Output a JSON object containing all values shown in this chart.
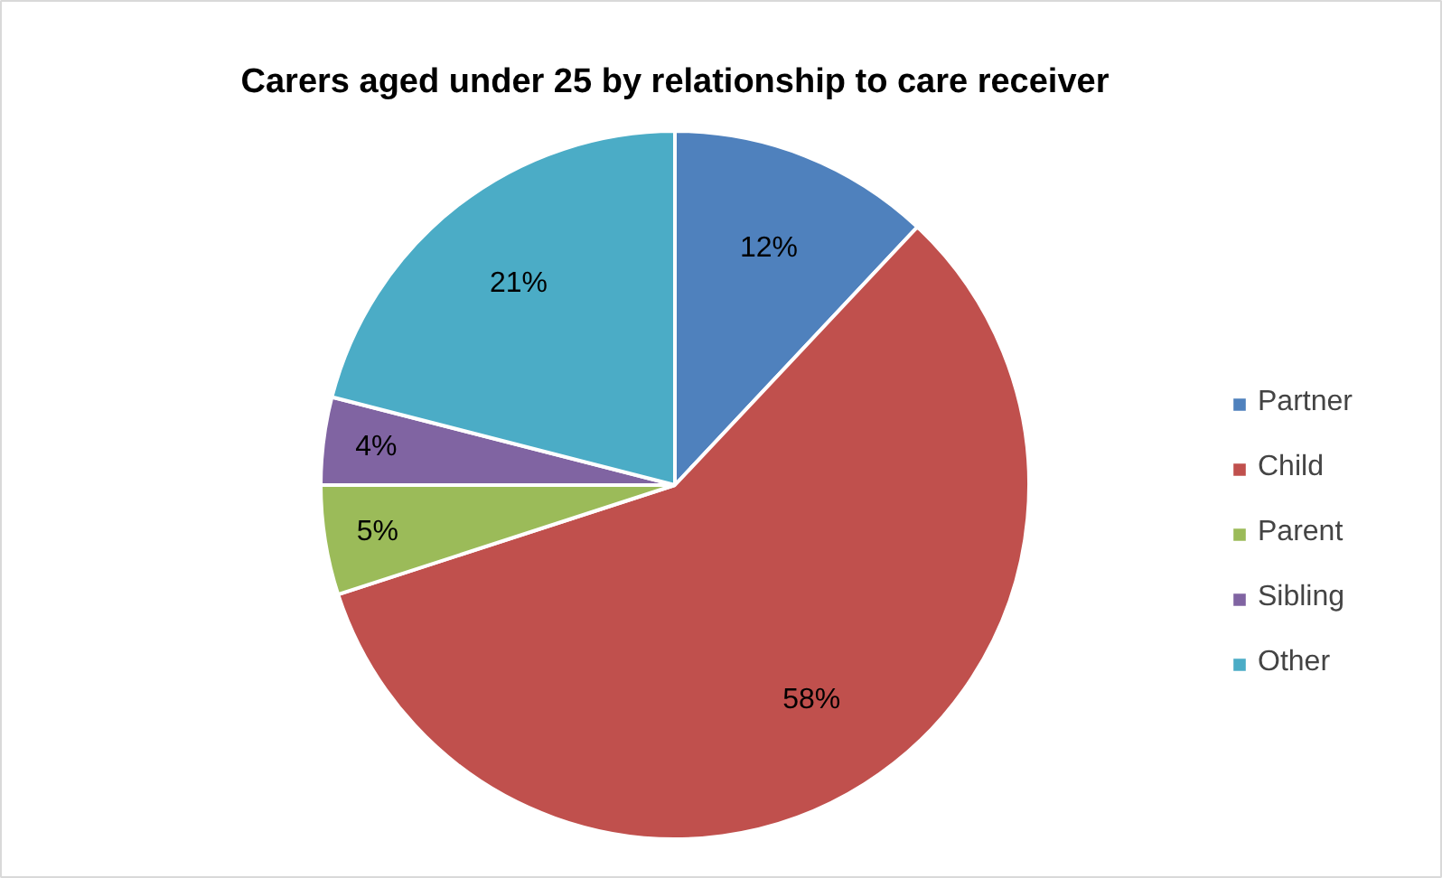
{
  "chart_data": {
    "type": "pie",
    "title": "Carers aged under 25 by relationship to care receiver",
    "categories": [
      "Partner",
      "Child",
      "Parent",
      "Sibling",
      "Other"
    ],
    "values": [
      12,
      58,
      5,
      4,
      21
    ],
    "colors": [
      "#4f81bd",
      "#c0504d",
      "#9bbb59",
      "#8064a2",
      "#4bacc6"
    ],
    "value_labels": [
      "12%",
      "58%",
      "5%",
      "4%",
      "21%"
    ],
    "legend": "right"
  }
}
